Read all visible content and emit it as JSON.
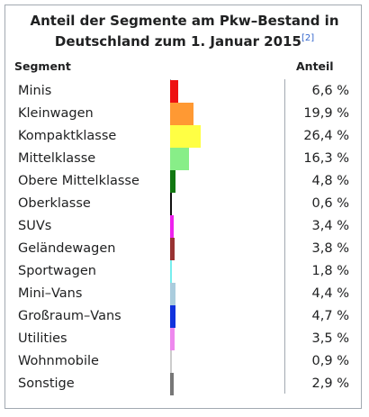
{
  "title": "Anteil der Segmente am Pkw–Bestand in Deutschland zum 1. Januar 2015",
  "title_ref": "[2]",
  "header": {
    "segment": "Segment",
    "share": "Anteil"
  },
  "chart_data": {
    "type": "bar",
    "title": "Anteil der Segmente am Pkw–Bestand in Deutschland zum 1. Januar 2015",
    "xlabel": "Segment",
    "ylabel": "Anteil",
    "categories": [
      "Minis",
      "Kleinwagen",
      "Kompaktklasse",
      "Mittelklasse",
      "Obere Mittelklasse",
      "Oberklasse",
      "SUVs",
      "Geländewagen",
      "Sportwagen",
      "Mini–Vans",
      "Großraum–Vans",
      "Utilities",
      "Wohnmobile",
      "Sonstige"
    ],
    "values": [
      6.6,
      19.9,
      26.4,
      16.3,
      4.8,
      0.6,
      3.4,
      3.8,
      1.8,
      4.4,
      4.7,
      3.5,
      0.9,
      2.9
    ],
    "value_labels": [
      "6,6 %",
      "19,9 %",
      "26,4 %",
      "16,3 %",
      "4,8 %",
      "0,6 %",
      "3,4 %",
      "3,8 %",
      "1,8 %",
      "4,4 %",
      "4,7 %",
      "3,5 %",
      "0,9 %",
      "2,9 %"
    ],
    "colors": [
      "#ee1111",
      "#ff9933",
      "#ffff44",
      "#88ee88",
      "#117711",
      "#111111",
      "#ee22ee",
      "#993333",
      "#77eeee",
      "#aaccdd",
      "#1133dd",
      "#ee88ee",
      "#cccccc",
      "#777777"
    ]
  }
}
